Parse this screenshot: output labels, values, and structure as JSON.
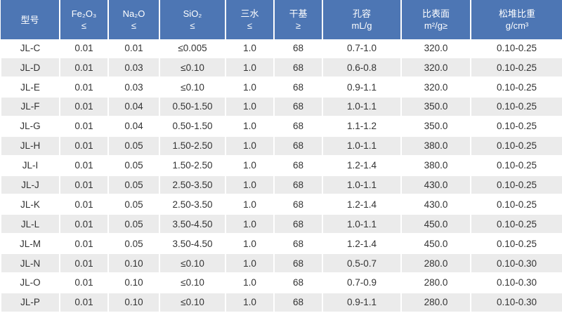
{
  "table": {
    "columns": [
      {
        "line1": "型号",
        "line2": ""
      },
      {
        "line1": "Fe₂O₃",
        "line2": "≤"
      },
      {
        "line1": "Na₂O",
        "line2": "≤"
      },
      {
        "line1": "SiO₂",
        "line2": "≤"
      },
      {
        "line1": "三水",
        "line2": "≤"
      },
      {
        "line1": "干基",
        "line2": "≥"
      },
      {
        "line1": "孔容",
        "line2": "mL/g"
      },
      {
        "line1": "比表面",
        "line2": "m²/g≥"
      },
      {
        "line1": "松堆比重",
        "line2": "g/cm³"
      }
    ],
    "rows": [
      [
        "JL-C",
        "0.01",
        "0.01",
        "≤0.005",
        "1.0",
        "68",
        "0.7-1.0",
        "320.0",
        "0.10-0.25"
      ],
      [
        "JL-D",
        "0.01",
        "0.03",
        "≤0.10",
        "1.0",
        "68",
        "0.6-0.8",
        "320.0",
        "0.10-0.25"
      ],
      [
        "JL-E",
        "0.01",
        "0.03",
        "≤0.10",
        "1.0",
        "68",
        "0.9-1.1",
        "320.0",
        "0.10-0.25"
      ],
      [
        "JL-F",
        "0.01",
        "0.04",
        "0.50-1.50",
        "1.0",
        "68",
        "1.0-1.1",
        "350.0",
        "0.10-0.25"
      ],
      [
        "JL-G",
        "0.01",
        "0.04",
        "0.50-1.50",
        "1.0",
        "68",
        "1.1-1.2",
        "350.0",
        "0.10-0.25"
      ],
      [
        "JL-H",
        "0.01",
        "0.05",
        "1.50-2.50",
        "1.0",
        "68",
        "1.0-1.1",
        "380.0",
        "0.10-0.25"
      ],
      [
        "JL-I",
        "0.01",
        "0.05",
        "1.50-2.50",
        "1.0",
        "68",
        "1.2-1.4",
        "380.0",
        "0.10-0.25"
      ],
      [
        "JL-J",
        "0.01",
        "0.05",
        "2.50-3.50",
        "1.0",
        "68",
        "1.0-1.1",
        "430.0",
        "0.10-0.25"
      ],
      [
        "JL-K",
        "0.01",
        "0.05",
        "2.50-3.50",
        "1.0",
        "68",
        "1.2-1.4",
        "430.0",
        "0.10-0.25"
      ],
      [
        "JL-L",
        "0.01",
        "0.05",
        "3.50-4.50",
        "1.0",
        "68",
        "1.0-1.1",
        "450.0",
        "0.10-0.25"
      ],
      [
        "JL-M",
        "0.01",
        "0.05",
        "3.50-4.50",
        "1.0",
        "68",
        "1.2-1.4",
        "450.0",
        "0.10-0.25"
      ],
      [
        "JL-N",
        "0.01",
        "0.10",
        "≤0.10",
        "1.0",
        "68",
        "0.5-0.7",
        "280.0",
        "0.10-0.30"
      ],
      [
        "JL-O",
        "0.01",
        "0.10",
        "≤0.10",
        "1.0",
        "68",
        "0.7-0.9",
        "280.0",
        "0.10-0.30"
      ],
      [
        "JL-P",
        "0.01",
        "0.10",
        "≤0.10",
        "1.0",
        "68",
        "0.9-1.1",
        "280.0",
        "0.10-0.30"
      ]
    ]
  },
  "colors": {
    "header_bg": "#4d76b4",
    "header_text": "#ffffff",
    "stripe_bg": "#ebebeb",
    "body_text": "#333333"
  }
}
